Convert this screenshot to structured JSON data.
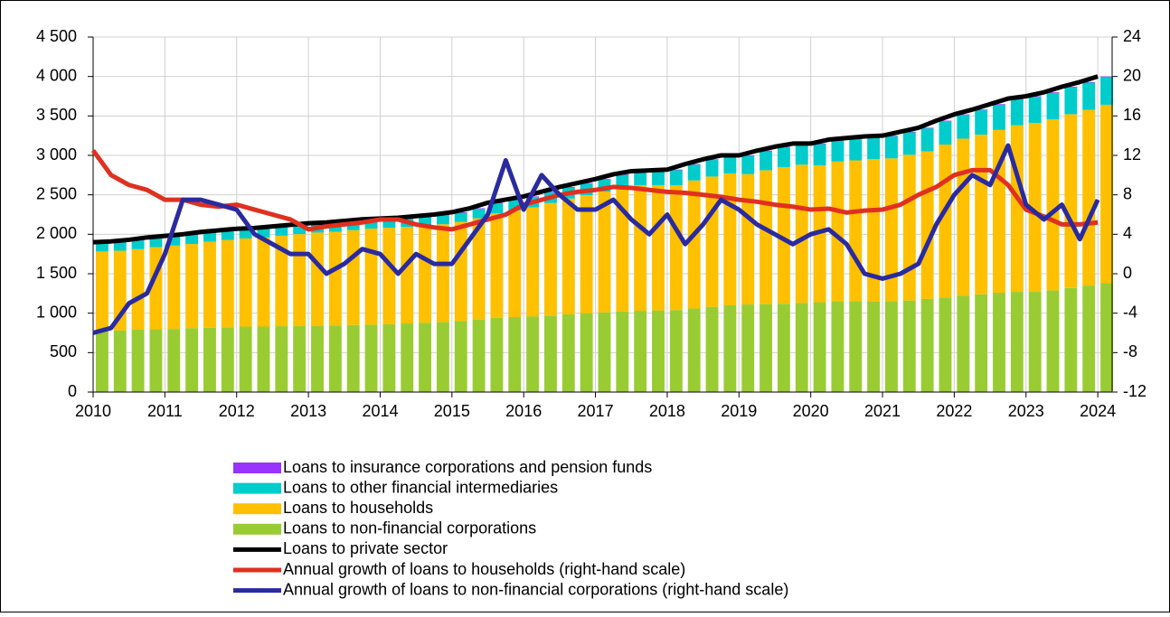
{
  "chart_data": {
    "type": "bar",
    "x": [
      2010,
      2010.25,
      2010.5,
      2010.75,
      2011,
      2011.25,
      2011.5,
      2011.75,
      2012,
      2012.25,
      2012.5,
      2012.75,
      2013,
      2013.25,
      2013.5,
      2013.75,
      2014,
      2014.25,
      2014.5,
      2014.75,
      2015,
      2015.25,
      2015.5,
      2015.75,
      2016,
      2016.25,
      2016.5,
      2016.75,
      2017,
      2017.25,
      2017.5,
      2017.75,
      2018,
      2018.25,
      2018.5,
      2018.75,
      2019,
      2019.25,
      2019.5,
      2019.75,
      2020,
      2020.25,
      2020.5,
      2020.75,
      2021,
      2021.25,
      2021.5,
      2021.75,
      2022,
      2022.25,
      2022.5,
      2022.75,
      2023,
      2023.25,
      2023.5,
      2023.75,
      2024
    ],
    "xlim": [
      2010,
      2024.2
    ],
    "xticks": [
      2010,
      2011,
      2012,
      2013,
      2014,
      2015,
      2016,
      2017,
      2018,
      2019,
      2020,
      2021,
      2022,
      2023,
      2024
    ],
    "ylim": [
      0,
      4500
    ],
    "yticks": [
      0,
      500,
      {
        "value": 1000,
        "label": "1 000"
      },
      {
        "value": 1500,
        "label": "1 500"
      },
      {
        "value": 2000,
        "label": "2 000"
      },
      {
        "value": 2500,
        "label": "2 500"
      },
      {
        "value": 3000,
        "label": "3 000"
      },
      {
        "value": 3500,
        "label": "3 500"
      },
      {
        "value": 4000,
        "label": "4 000"
      },
      {
        "value": 4500,
        "label": "4 500"
      }
    ],
    "y2lim": [
      -12,
      24
    ],
    "y2ticks": [
      -12,
      -8,
      -4,
      0,
      4,
      8,
      12,
      16,
      20,
      24
    ],
    "grid": true,
    "series": [
      {
        "name": "Loans to insurance corporations and pension funds",
        "type": "bar",
        "stack": 3,
        "color": "#9933ff",
        "values": [
          8,
          8,
          8,
          8,
          8,
          8,
          8,
          8,
          8,
          8,
          8,
          8,
          8,
          8,
          8,
          8,
          8,
          8,
          8,
          8,
          8,
          8,
          8,
          8,
          8,
          8,
          8,
          8,
          8,
          8,
          8,
          8,
          8,
          8,
          8,
          8,
          8,
          8,
          8,
          8,
          8,
          8,
          8,
          8,
          8,
          8,
          8,
          8,
          8,
          8,
          8,
          8,
          8,
          8,
          8,
          8,
          8
        ]
      },
      {
        "name": "Loans to other financial intermediaries",
        "type": "bar",
        "stack": 2,
        "color": "#00cccc",
        "values": [
          110,
          110,
          110,
          115,
          115,
          115,
          115,
          115,
          115,
          110,
          110,
          110,
          110,
          110,
          110,
          110,
          110,
          110,
          110,
          115,
          115,
          120,
          125,
          130,
          130,
          135,
          140,
          145,
          150,
          160,
          170,
          180,
          190,
          200,
          210,
          220,
          230,
          240,
          250,
          260,
          270,
          270,
          275,
          280,
          280,
          285,
          290,
          295,
          300,
          310,
          320,
          330,
          330,
          335,
          340,
          345,
          350
        ]
      },
      {
        "name": "Loans to households",
        "type": "bar",
        "stack": 1,
        "color": "#ffc000",
        "values": [
          1012,
          1012,
          1022,
          1042,
          1057,
          1067,
          1092,
          1107,
          1117,
          1132,
          1147,
          1162,
          1182,
          1187,
          1202,
          1217,
          1222,
          1222,
          1232,
          1237,
          1257,
          1282,
          1327,
          1352,
          1382,
          1427,
          1467,
          1497,
          1532,
          1572,
          1592,
          1587,
          1582,
          1622,
          1652,
          1672,
          1652,
          1697,
          1732,
          1752,
          1732,
          1772,
          1787,
          1807,
          1812,
          1847,
          1872,
          1937,
          1992,
          2022,
          2062,
          2112,
          2142,
          2167,
          2202,
          2227,
          2262
        ]
      },
      {
        "name": "Loans to non-financial corporations",
        "type": "bar",
        "stack": 0,
        "color": "#99cc33",
        "values": [
          770,
          780,
          790,
          795,
          800,
          810,
          815,
          820,
          830,
          830,
          835,
          840,
          840,
          845,
          850,
          855,
          860,
          870,
          880,
          890,
          900,
          920,
          940,
          950,
          960,
          970,
          985,
          1000,
          1010,
          1020,
          1030,
          1035,
          1040,
          1060,
          1080,
          1100,
          1110,
          1115,
          1120,
          1130,
          1140,
          1150,
          1150,
          1145,
          1150,
          1160,
          1180,
          1200,
          1220,
          1240,
          1260,
          1270,
          1270,
          1290,
          1320,
          1350,
          1380
        ]
      },
      {
        "name": "Loans to private sector",
        "type": "line",
        "color": "#000000",
        "values": [
          1900,
          1910,
          1930,
          1960,
          1980,
          2000,
          2030,
          2050,
          2070,
          2080,
          2100,
          2120,
          2140,
          2150,
          2170,
          2190,
          2200,
          2210,
          2230,
          2250,
          2280,
          2330,
          2400,
          2440,
          2480,
          2540,
          2600,
          2650,
          2700,
          2760,
          2800,
          2810,
          2820,
          2890,
          2950,
          3000,
          3000,
          3060,
          3110,
          3150,
          3150,
          3200,
          3220,
          3240,
          3250,
          3300,
          3350,
          3440,
          3520,
          3580,
          3650,
          3720,
          3750,
          3800,
          3870,
          3930,
          4000
        ]
      },
      {
        "name": "Annual growth of loans to households (right-hand scale)",
        "type": "line",
        "axis": "y2",
        "color": "#e03020",
        "values": [
          12.5,
          10,
          9,
          8.5,
          7.5,
          7.5,
          7,
          6.8,
          7,
          6.5,
          6,
          5.5,
          4.5,
          4.8,
          5,
          5.2,
          5.5,
          5.5,
          5,
          4.7,
          4.5,
          5,
          5.5,
          6,
          7,
          7.5,
          8,
          8.3,
          8.5,
          8.8,
          8.7,
          8.5,
          8.3,
          8.2,
          8,
          7.8,
          7.5,
          7.3,
          7,
          6.8,
          6.5,
          6.6,
          6.2,
          6.4,
          6.5,
          7,
          8,
          8.8,
          10,
          10.5,
          10.5,
          9,
          6.5,
          5.8,
          5,
          5,
          5.2
        ]
      },
      {
        "name": "Annual growth of loans to non-financial corporations (right-hand scale)",
        "type": "line",
        "axis": "y2",
        "color": "#2a2aa0",
        "values": [
          -6,
          -5.5,
          -3,
          -2,
          2,
          7.5,
          7.5,
          7,
          6.5,
          4,
          3,
          2,
          2,
          0,
          1,
          2.5,
          2,
          0,
          2,
          1,
          1,
          3.5,
          6,
          11.5,
          6.5,
          10,
          8,
          6.5,
          6.5,
          7.5,
          5.5,
          4,
          6,
          3,
          5,
          7.5,
          6.5,
          5,
          4,
          3,
          4,
          4.5,
          3,
          0,
          -0.5,
          0,
          1,
          5,
          8,
          10,
          9,
          13,
          7,
          5.5,
          7,
          3.5,
          7.5
        ]
      }
    ]
  }
}
